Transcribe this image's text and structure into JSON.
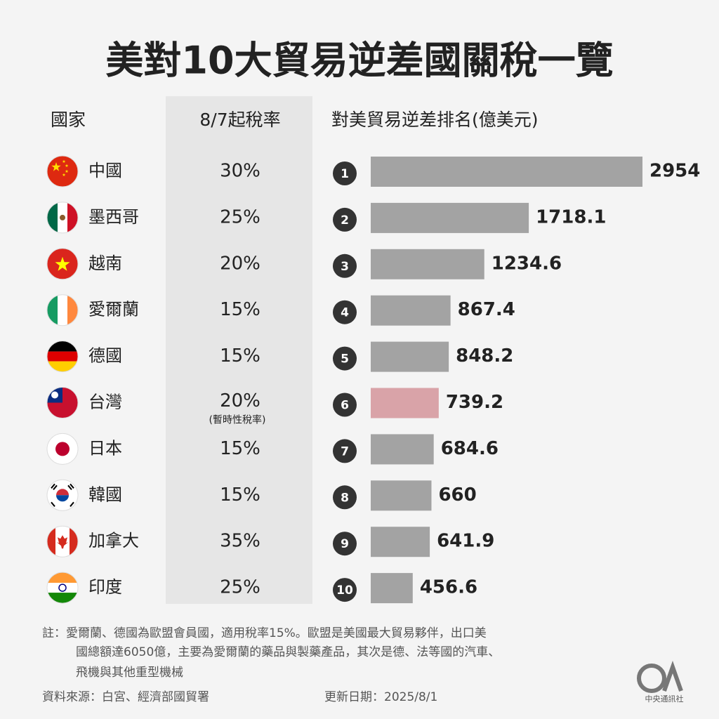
{
  "chart_data": {
    "type": "bar",
    "title": "美對10大貿易逆差國關稅一覽",
    "column_headers": [
      "國家",
      "8/7起稅率",
      "對美貿易逆差排名(億美元)"
    ],
    "categories": [
      "中國",
      "墨西哥",
      "越南",
      "愛爾蘭",
      "德國",
      "台灣",
      "日本",
      "韓國",
      "加拿大",
      "印度"
    ],
    "tariffs": [
      "30%",
      "25%",
      "20%",
      "15%",
      "15%",
      "20%",
      "15%",
      "15%",
      "35%",
      "25%"
    ],
    "tariff_colors": [
      "#222222",
      "#222222",
      "#222222",
      "#222222",
      "#222222",
      "#c62828",
      "#222222",
      "#222222",
      "#222222",
      "#222222"
    ],
    "tariff_notes": [
      null,
      null,
      null,
      null,
      null,
      "(暫時性稅率)",
      null,
      null,
      null,
      null
    ],
    "ranks": [
      1,
      2,
      3,
      4,
      5,
      6,
      7,
      8,
      9,
      10
    ],
    "values": [
      2954,
      1718.1,
      1234.6,
      867.4,
      848.2,
      739.2,
      684.6,
      660,
      641.9,
      456.6
    ],
    "colors": [
      "#a3a3a3",
      "#a3a3a3",
      "#a3a3a3",
      "#a3a3a3",
      "#a3a3a3",
      "#d9a3a8",
      "#a3a3a3",
      "#a3a3a3",
      "#a3a3a3",
      "#a3a3a3"
    ],
    "note_lines": [
      "註：愛爾蘭、德國為歐盟會員國，適用稅率15%。歐盟是美國最大貿易夥伴，出口美",
      "國總額達6050億，主要為愛爾蘭的藥品與製藥產品，其次是德、法等國的汽車、",
      "飛機與其他重型機械"
    ],
    "source": "資料來源：白宮、經濟部國貿署",
    "updated": "更新日期：2025/8/1",
    "publisher": "中央通訊社"
  }
}
